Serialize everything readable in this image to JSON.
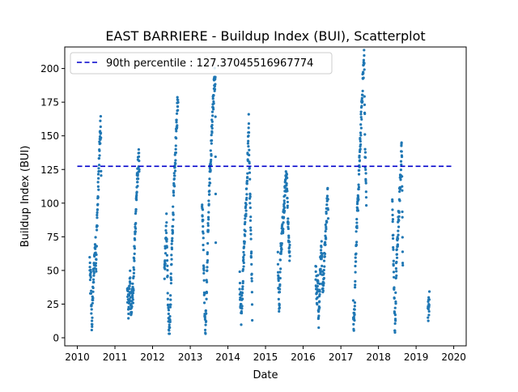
{
  "chart_data": {
    "type": "scatter",
    "title": "EAST BARRIERE - Buildup Index (BUI), Scatterplot",
    "xlabel": "Date",
    "ylabel": "Buildup Index (BUI)",
    "xlim": [
      "2009-09-01",
      "2020-05-01"
    ],
    "ylim": [
      -6,
      216
    ],
    "x_ticks": [
      "2010",
      "2011",
      "2012",
      "2013",
      "2014",
      "2015",
      "2016",
      "2017",
      "2018",
      "2019",
      "2020"
    ],
    "y_ticks": [
      0,
      25,
      50,
      75,
      100,
      125,
      150,
      175,
      200
    ],
    "grid": false,
    "legend_position": "top-left",
    "series_color": "#1f77b4",
    "reference_line_color": "#0000cc",
    "reference_line": {
      "label": "90th percentile : 127.37045516967774",
      "value": 127.37045516967774,
      "x_start": "2010-01-01",
      "x_end": "2019-12-31"
    },
    "seasons": [
      {
        "year": 2010,
        "start": "2010-05-01",
        "end": "2010-08-20",
        "points": [
          [
            0.0,
            57
          ],
          [
            0.05,
            38
          ],
          [
            0.1,
            48
          ],
          [
            0.15,
            20
          ],
          [
            0.2,
            8
          ],
          [
            0.26,
            30
          ],
          [
            0.32,
            42
          ],
          [
            0.38,
            50
          ],
          [
            0.44,
            62
          ],
          [
            0.5,
            70
          ],
          [
            0.56,
            55
          ],
          [
            0.62,
            80
          ],
          [
            0.68,
            95
          ],
          [
            0.74,
            110
          ],
          [
            0.8,
            125
          ],
          [
            0.86,
            140
          ],
          [
            0.92,
            152
          ],
          [
            0.97,
            160
          ],
          [
            1.0,
            115
          ]
        ]
      },
      {
        "year": 2011,
        "start": "2011-05-01",
        "end": "2011-08-25",
        "points": [
          [
            0.0,
            38
          ],
          [
            0.06,
            28
          ],
          [
            0.12,
            20
          ],
          [
            0.18,
            35
          ],
          [
            0.24,
            48
          ],
          [
            0.3,
            15
          ],
          [
            0.36,
            25
          ],
          [
            0.42,
            40
          ],
          [
            0.48,
            30
          ],
          [
            0.54,
            50
          ],
          [
            0.6,
            65
          ],
          [
            0.66,
            80
          ],
          [
            0.72,
            95
          ],
          [
            0.78,
            108
          ],
          [
            0.84,
            118
          ],
          [
            0.9,
            126
          ],
          [
            0.96,
            132
          ],
          [
            1.0,
            122
          ]
        ]
      },
      {
        "year": 2012,
        "start": "2012-04-25",
        "end": "2012-09-05",
        "points": [
          [
            0.0,
            45
          ],
          [
            0.05,
            60
          ],
          [
            0.1,
            70
          ],
          [
            0.15,
            85
          ],
          [
            0.2,
            55
          ],
          [
            0.26,
            30
          ],
          [
            0.32,
            12
          ],
          [
            0.38,
            5
          ],
          [
            0.44,
            25
          ],
          [
            0.5,
            50
          ],
          [
            0.56,
            70
          ],
          [
            0.62,
            90
          ],
          [
            0.68,
            105
          ],
          [
            0.74,
            120
          ],
          [
            0.8,
            135
          ],
          [
            0.86,
            150
          ],
          [
            0.92,
            165
          ],
          [
            0.97,
            178
          ],
          [
            1.0,
            172
          ]
        ]
      },
      {
        "year": 2013,
        "start": "2013-04-25",
        "end": "2013-09-05",
        "points": [
          [
            0.0,
            105
          ],
          [
            0.05,
            90
          ],
          [
            0.1,
            70
          ],
          [
            0.15,
            40
          ],
          [
            0.2,
            20
          ],
          [
            0.26,
            8
          ],
          [
            0.32,
            30
          ],
          [
            0.38,
            55
          ],
          [
            0.44,
            80
          ],
          [
            0.5,
            100
          ],
          [
            0.56,
            115
          ],
          [
            0.62,
            130
          ],
          [
            0.68,
            145
          ],
          [
            0.74,
            160
          ],
          [
            0.8,
            172
          ],
          [
            0.86,
            183
          ],
          [
            0.92,
            192
          ],
          [
            0.97,
            196
          ],
          [
            1.0,
            70
          ]
        ]
      },
      {
        "year": 2014,
        "start": "2014-04-25",
        "end": "2014-08-25",
        "points": [
          [
            0.0,
            45
          ],
          [
            0.06,
            30
          ],
          [
            0.12,
            17
          ],
          [
            0.18,
            25
          ],
          [
            0.24,
            40
          ],
          [
            0.3,
            55
          ],
          [
            0.36,
            68
          ],
          [
            0.42,
            80
          ],
          [
            0.48,
            92
          ],
          [
            0.54,
            105
          ],
          [
            0.6,
            118
          ],
          [
            0.66,
            140
          ],
          [
            0.72,
            158
          ],
          [
            0.78,
            120
          ],
          [
            0.84,
            100
          ],
          [
            0.9,
            70
          ],
          [
            0.96,
            45
          ],
          [
            1.0,
            19
          ]
        ]
      },
      {
        "year": 2015,
        "start": "2015-05-01",
        "end": "2015-08-25",
        "points": [
          [
            0.0,
            55
          ],
          [
            0.06,
            35
          ],
          [
            0.12,
            22
          ],
          [
            0.18,
            48
          ],
          [
            0.24,
            62
          ],
          [
            0.3,
            70
          ],
          [
            0.36,
            78
          ],
          [
            0.42,
            85
          ],
          [
            0.48,
            92
          ],
          [
            0.54,
            100
          ],
          [
            0.6,
            108
          ],
          [
            0.66,
            115
          ],
          [
            0.72,
            122
          ],
          [
            0.78,
            110
          ],
          [
            0.84,
            90
          ],
          [
            0.9,
            75
          ],
          [
            0.96,
            65
          ],
          [
            1.0,
            60
          ]
        ]
      },
      {
        "year": 2016,
        "start": "2016-05-01",
        "end": "2016-08-31",
        "points": [
          [
            0.0,
            52
          ],
          [
            0.06,
            40
          ],
          [
            0.12,
            30
          ],
          [
            0.18,
            45
          ],
          [
            0.24,
            12
          ],
          [
            0.3,
            25
          ],
          [
            0.36,
            55
          ],
          [
            0.42,
            60
          ],
          [
            0.48,
            68
          ],
          [
            0.54,
            45
          ],
          [
            0.6,
            35
          ],
          [
            0.66,
            50
          ],
          [
            0.72,
            62
          ],
          [
            0.78,
            75
          ],
          [
            0.84,
            85
          ],
          [
            0.9,
            95
          ],
          [
            0.96,
            108
          ],
          [
            1.0,
            90
          ]
        ]
      },
      {
        "year": 2017,
        "start": "2017-05-01",
        "end": "2017-09-05",
        "points": [
          [
            0.0,
            20
          ],
          [
            0.06,
            10
          ],
          [
            0.12,
            30
          ],
          [
            0.18,
            60
          ],
          [
            0.24,
            75
          ],
          [
            0.3,
            88
          ],
          [
            0.36,
            100
          ],
          [
            0.42,
            115
          ],
          [
            0.48,
            130
          ],
          [
            0.54,
            145
          ],
          [
            0.6,
            160
          ],
          [
            0.66,
            175
          ],
          [
            0.72,
            188
          ],
          [
            0.78,
            200
          ],
          [
            0.84,
            208
          ],
          [
            0.9,
            140
          ],
          [
            0.96,
            120
          ],
          [
            1.0,
            100
          ]
        ]
      },
      {
        "year": 2018,
        "start": "2018-05-15",
        "end": "2018-08-25",
        "points": [
          [
            0.0,
            100
          ],
          [
            0.06,
            80
          ],
          [
            0.12,
            55
          ],
          [
            0.18,
            30
          ],
          [
            0.24,
            8
          ],
          [
            0.3,
            20
          ],
          [
            0.36,
            45
          ],
          [
            0.42,
            60
          ],
          [
            0.48,
            70
          ],
          [
            0.54,
            80
          ],
          [
            0.6,
            90
          ],
          [
            0.66,
            100
          ],
          [
            0.72,
            110
          ],
          [
            0.78,
            120
          ],
          [
            0.84,
            130
          ],
          [
            0.9,
            141
          ],
          [
            0.96,
            85
          ],
          [
            1.0,
            55
          ]
        ]
      },
      {
        "year": 2019,
        "start": "2019-04-25",
        "end": "2019-05-10",
        "points": [
          [
            0.0,
            18
          ],
          [
            0.3,
            21
          ],
          [
            0.6,
            24
          ],
          [
            1.0,
            26
          ]
        ]
      }
    ]
  }
}
